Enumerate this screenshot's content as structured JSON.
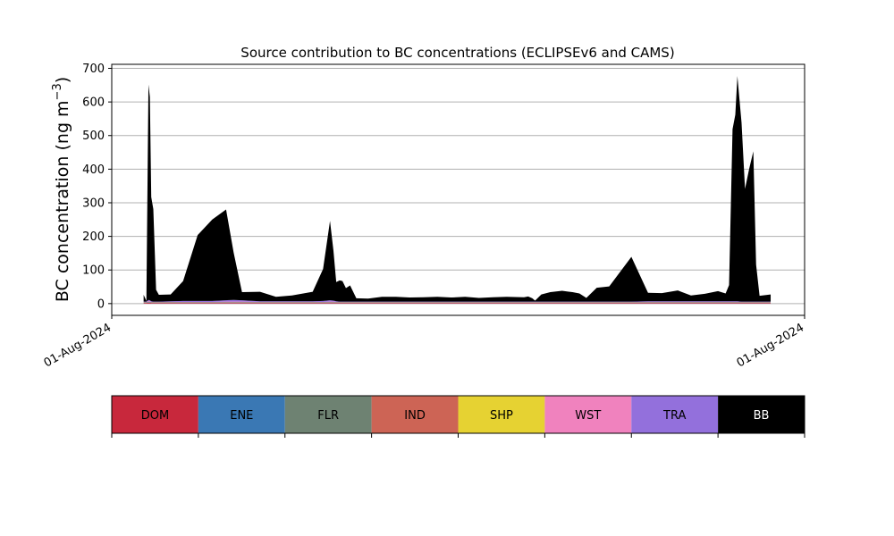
{
  "chart_data": {
    "type": "area",
    "title": "Source contribution to BC concentrations (ECLIPSEv6 and CAMS)",
    "ylabel": "BC concentration (ng m",
    "ylabel_sup": "−3",
    "ylabel_close": ")",
    "xlabel": "",
    "x_tick_labels": [
      "01-Aug-2024",
      "01-Aug-2024"
    ],
    "y_ticks": [
      0,
      100,
      200,
      300,
      400,
      500,
      600,
      700
    ],
    "ylim": [
      -35,
      712
    ],
    "xlim": [
      0,
      100
    ],
    "grid": "horizontal",
    "stacked": true,
    "x": [
      4.6,
      5.0,
      5.3,
      5.5,
      5.7,
      6.0,
      6.4,
      6.8,
      8.5,
      10.3,
      12.4,
      14.5,
      16.5,
      17.6,
      18.8,
      21.4,
      23.7,
      26.0,
      29.0,
      30.5,
      31.5,
      32.0,
      32.4,
      32.9,
      33.3,
      33.8,
      34.4,
      35.3,
      37.0,
      39.0,
      41.0,
      43.0,
      45.0,
      47.0,
      49.0,
      51.0,
      53.0,
      55.0,
      57.0,
      59.5,
      60.1,
      60.7,
      61.1,
      62.0,
      63.3,
      65.0,
      66.5,
      67.5,
      68.5,
      70.0,
      71.8,
      75.0,
      77.4,
      79.4,
      81.7,
      83.6,
      85.6,
      87.5,
      88.6,
      89.1,
      89.6,
      90.0,
      90.3,
      90.9,
      91.4,
      92.0,
      92.6,
      93.0,
      93.5,
      95.1
    ],
    "series": [
      {
        "name": "DOM",
        "color": "#c8283c",
        "values": [
          2,
          2,
          3,
          3,
          2,
          2,
          2,
          2,
          2,
          2,
          2,
          2,
          2,
          2,
          2,
          2,
          2,
          2,
          2,
          2,
          2,
          2,
          2,
          2,
          2,
          2,
          2,
          2,
          2,
          2,
          2,
          2,
          2,
          2,
          2,
          2,
          2,
          2,
          2,
          2,
          2,
          2,
          2,
          2,
          2,
          2,
          2,
          2,
          2,
          2,
          2,
          2,
          2,
          2,
          2,
          2,
          2,
          2,
          2,
          2,
          2,
          2,
          2,
          2,
          2,
          2,
          2,
          2,
          2,
          2
        ]
      },
      {
        "name": "ENE",
        "color": "#3a78b4",
        "values": [
          1,
          1,
          1,
          1,
          1,
          1,
          1,
          1,
          1,
          1,
          1,
          1,
          1,
          1,
          1,
          1,
          1,
          1,
          1,
          1,
          1,
          1,
          1,
          1,
          1,
          1,
          1,
          1,
          1,
          1,
          1,
          1,
          1,
          1,
          1,
          1,
          1,
          1,
          1,
          1,
          1,
          1,
          1,
          1,
          1,
          1,
          1,
          1,
          1,
          1,
          1,
          1,
          1,
          1,
          1,
          1,
          1,
          1,
          1,
          1,
          1,
          1,
          1,
          1,
          1,
          1,
          1,
          1,
          1,
          1
        ]
      },
      {
        "name": "FLR",
        "color": "#6e8272",
        "values": [
          1,
          1,
          1,
          1,
          1,
          1,
          1,
          1,
          1,
          1,
          1,
          1,
          1,
          1,
          1,
          1,
          1,
          1,
          1,
          1,
          1,
          1,
          1,
          1,
          1,
          1,
          1,
          1,
          1,
          1,
          1,
          1,
          1,
          1,
          1,
          1,
          1,
          1,
          1,
          1,
          1,
          1,
          1,
          1,
          1,
          1,
          1,
          1,
          1,
          1,
          1,
          1,
          1,
          1,
          1,
          1,
          1,
          1,
          1,
          1,
          1,
          1,
          1,
          1,
          1,
          1,
          1,
          1,
          1,
          1
        ]
      },
      {
        "name": "IND",
        "color": "#cd6455",
        "values": [
          1,
          1,
          1,
          1,
          1,
          1,
          1,
          1,
          1,
          1,
          1,
          1,
          1,
          1,
          1,
          1,
          1,
          1,
          1,
          1,
          1,
          1,
          1,
          1,
          1,
          1,
          1,
          1,
          1,
          1,
          1,
          1,
          1,
          1,
          1,
          1,
          1,
          1,
          1,
          1,
          1,
          1,
          1,
          1,
          1,
          1,
          1,
          1,
          1,
          1,
          1,
          1,
          1,
          1,
          1,
          1,
          1,
          1,
          1,
          1,
          1,
          1,
          1,
          1,
          1,
          1,
          1,
          1,
          1,
          1
        ]
      },
      {
        "name": "SHP",
        "color": "#e6d232",
        "values": [
          0,
          0,
          0,
          0,
          0,
          0,
          0,
          0,
          0,
          0,
          0,
          0,
          0,
          0,
          0,
          0,
          0,
          0,
          0,
          0,
          0,
          0,
          0,
          0,
          0,
          0,
          0,
          0,
          0,
          0,
          0,
          0,
          0,
          0,
          0,
          0,
          0,
          0,
          0,
          0,
          0,
          0,
          0,
          0,
          0,
          0,
          0,
          0,
          0,
          0,
          0,
          0,
          0,
          0,
          0,
          0,
          0,
          0,
          0,
          0,
          0,
          0,
          0,
          0,
          0,
          0,
          0,
          0,
          0,
          0
        ]
      },
      {
        "name": "WST",
        "color": "#f082be",
        "values": [
          0,
          0,
          1,
          1,
          0,
          0,
          0,
          0,
          0,
          0,
          0,
          0,
          1,
          1,
          1,
          0,
          0,
          0,
          0,
          0,
          1,
          1,
          0,
          0,
          0,
          0,
          0,
          0,
          0,
          0,
          0,
          0,
          0,
          0,
          0,
          0,
          0,
          0,
          0,
          0,
          0,
          0,
          0,
          0,
          0,
          0,
          0,
          0,
          0,
          0,
          0,
          0,
          0,
          0,
          0,
          0,
          0,
          0,
          0,
          0,
          0,
          0,
          0,
          0,
          0,
          0,
          0,
          0,
          0,
          0
        ]
      },
      {
        "name": "TRA",
        "color": "#9370dc",
        "values": [
          1,
          1,
          4,
          3,
          2,
          1,
          1,
          1,
          2,
          3,
          3,
          3,
          4,
          5,
          4,
          2,
          2,
          2,
          2,
          3,
          4,
          3,
          2,
          1,
          1,
          1,
          1,
          1,
          1,
          1,
          1,
          1,
          1,
          1,
          1,
          1,
          1,
          1,
          1,
          1,
          1,
          1,
          1,
          1,
          1,
          1,
          1,
          1,
          1,
          1,
          1,
          1,
          2,
          2,
          2,
          2,
          2,
          2,
          2,
          2,
          2,
          2,
          2,
          1,
          1,
          1,
          1,
          1,
          1,
          1
        ]
      },
      {
        "name": "BB",
        "color": "#000000",
        "values": [
          20,
          2,
          641,
          605,
          310,
          275,
          35,
          20,
          20,
          59,
          196,
          242,
          270,
          140,
          24,
          28,
          13,
          17,
          28,
          95,
          236,
          148,
          57,
          63,
          61,
          40,
          48,
          10,
          9,
          14,
          14,
          12,
          13,
          14,
          12,
          14,
          11,
          13,
          14,
          13,
          15,
          10,
          3,
          21,
          28,
          32,
          28,
          24,
          11,
          41,
          45,
          133,
          25,
          24,
          32,
          17,
          22,
          30,
          23,
          48,
          512,
          555,
          670,
          532,
          335,
          395,
          447,
          110,
          17,
          21
        ]
      }
    ],
    "legend": {
      "placement": "below",
      "items": [
        {
          "name": "DOM",
          "color": "#c8283c",
          "text_color": "#000000"
        },
        {
          "name": "ENE",
          "color": "#3a78b4",
          "text_color": "#000000"
        },
        {
          "name": "FLR",
          "color": "#6e8272",
          "text_color": "#000000"
        },
        {
          "name": "IND",
          "color": "#cd6455",
          "text_color": "#000000"
        },
        {
          "name": "SHP",
          "color": "#e6d232",
          "text_color": "#000000"
        },
        {
          "name": "WST",
          "color": "#f082be",
          "text_color": "#000000"
        },
        {
          "name": "TRA",
          "color": "#9370dc",
          "text_color": "#000000"
        },
        {
          "name": "BB",
          "color": "#000000",
          "text_color": "#ffffff"
        }
      ]
    }
  }
}
